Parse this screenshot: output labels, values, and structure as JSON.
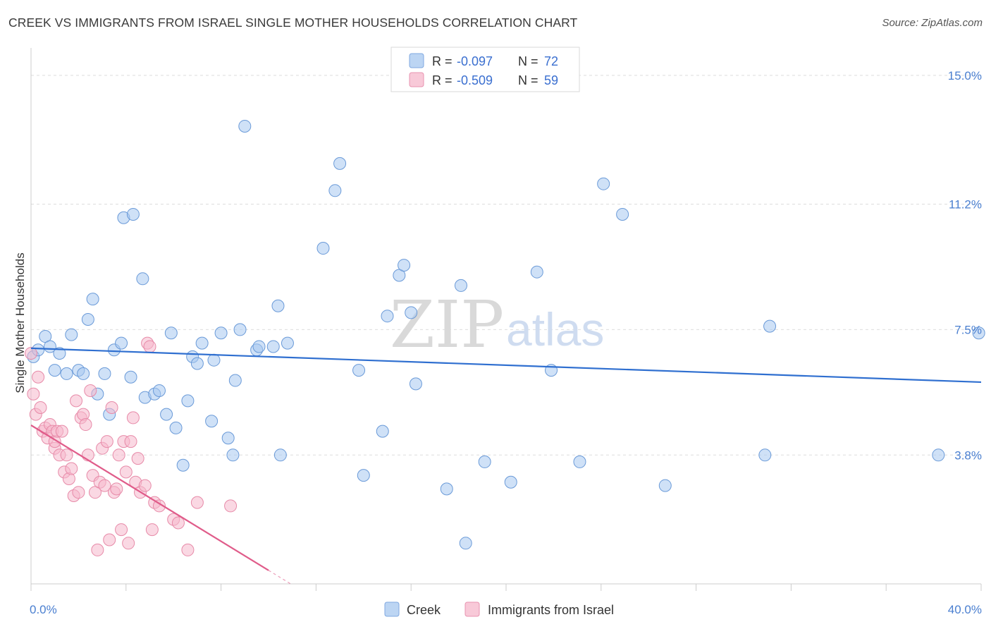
{
  "title": "CREEK VS IMMIGRANTS FROM ISRAEL SINGLE MOTHER HOUSEHOLDS CORRELATION CHART",
  "source": "Source: ZipAtlas.com",
  "watermark": {
    "zip": "ZIP",
    "atlas": "atlas"
  },
  "chart_data": {
    "type": "scatter",
    "ylabel": "Single Mother Households",
    "xlim": [
      0,
      40
    ],
    "ylim": [
      0,
      15.6
    ],
    "x_tick_labels": {
      "0": "0.0%",
      "40": "40.0%"
    },
    "y_ticks": [
      3.8,
      7.5,
      11.2,
      15.0
    ],
    "y_tick_labels": [
      "3.8%",
      "7.5%",
      "11.2%",
      "15.0%"
    ],
    "grid": "horizontal dashed",
    "legend_top": [
      {
        "r_label": "R = ",
        "r_value": "-0.097",
        "n_label": "N = ",
        "n_value": "72",
        "color": "#a8c8f0"
      },
      {
        "r_label": "R = ",
        "r_value": "-0.509",
        "n_label": "N = ",
        "n_value": "59",
        "color": "#f5b8cc"
      }
    ],
    "series": [
      {
        "name": "Creek",
        "color": "#a8c8f0",
        "stroke": "#6a9ad8",
        "trend": {
          "x": [
            0,
            40
          ],
          "y": [
            6.95,
            5.95
          ],
          "color": "#2f6fd0"
        },
        "points": [
          [
            0.1,
            6.7
          ],
          [
            0.3,
            6.9
          ],
          [
            0.6,
            7.3
          ],
          [
            0.8,
            7.0
          ],
          [
            1.0,
            6.3
          ],
          [
            1.2,
            6.8
          ],
          [
            1.5,
            6.2
          ],
          [
            1.7,
            7.35
          ],
          [
            2.0,
            6.3
          ],
          [
            2.2,
            6.2
          ],
          [
            2.4,
            7.8
          ],
          [
            2.6,
            8.4
          ],
          [
            2.8,
            5.6
          ],
          [
            3.1,
            6.2
          ],
          [
            3.3,
            5.0
          ],
          [
            3.5,
            6.9
          ],
          [
            3.8,
            7.1
          ],
          [
            3.9,
            10.8
          ],
          [
            4.2,
            6.1
          ],
          [
            4.3,
            10.9
          ],
          [
            4.7,
            9.0
          ],
          [
            4.8,
            5.5
          ],
          [
            5.2,
            5.6
          ],
          [
            5.4,
            5.7
          ],
          [
            5.7,
            5.0
          ],
          [
            5.9,
            7.4
          ],
          [
            6.1,
            4.6
          ],
          [
            6.4,
            3.5
          ],
          [
            6.6,
            5.4
          ],
          [
            6.8,
            6.7
          ],
          [
            7.0,
            6.5
          ],
          [
            7.2,
            7.1
          ],
          [
            7.6,
            4.8
          ],
          [
            7.7,
            6.6
          ],
          [
            8.0,
            7.4
          ],
          [
            8.3,
            4.3
          ],
          [
            8.5,
            3.8
          ],
          [
            8.6,
            6.0
          ],
          [
            8.8,
            7.5
          ],
          [
            9.0,
            13.5
          ],
          [
            9.5,
            6.9
          ],
          [
            9.6,
            7.0
          ],
          [
            10.2,
            7.0
          ],
          [
            10.4,
            8.2
          ],
          [
            10.5,
            3.8
          ],
          [
            10.8,
            7.1
          ],
          [
            12.3,
            9.9
          ],
          [
            12.8,
            11.6
          ],
          [
            13.0,
            12.4
          ],
          [
            13.8,
            6.3
          ],
          [
            14.0,
            3.2
          ],
          [
            14.8,
            4.5
          ],
          [
            15.0,
            7.9
          ],
          [
            15.5,
            9.1
          ],
          [
            15.7,
            9.4
          ],
          [
            16.0,
            8.0
          ],
          [
            16.2,
            5.9
          ],
          [
            17.5,
            2.8
          ],
          [
            18.1,
            8.8
          ],
          [
            18.3,
            1.2
          ],
          [
            19.1,
            3.6
          ],
          [
            20.2,
            3.0
          ],
          [
            21.3,
            9.2
          ],
          [
            21.9,
            6.3
          ],
          [
            23.1,
            3.6
          ],
          [
            24.1,
            11.8
          ],
          [
            24.9,
            10.9
          ],
          [
            26.7,
            2.9
          ],
          [
            30.9,
            3.8
          ],
          [
            31.1,
            7.6
          ],
          [
            38.2,
            3.8
          ],
          [
            39.9,
            7.4
          ]
        ]
      },
      {
        "name": "Immigrants from Israel",
        "color": "#f5b8cc",
        "stroke": "#e78aa8",
        "trend": {
          "x": [
            0,
            10.0
          ],
          "y": [
            4.68,
            0.4
          ],
          "dash_x": [
            10.0,
            11.0
          ],
          "dash_y": [
            0.4,
            -0.03
          ],
          "color": "#e05c8a"
        },
        "points": [
          [
            0.0,
            6.8
          ],
          [
            0.1,
            5.6
          ],
          [
            0.2,
            5.0
          ],
          [
            0.3,
            6.1
          ],
          [
            0.4,
            5.2
          ],
          [
            0.5,
            4.5
          ],
          [
            0.6,
            4.6
          ],
          [
            0.7,
            4.3
          ],
          [
            0.8,
            4.7
          ],
          [
            0.9,
            4.5
          ],
          [
            1.0,
            4.0
          ],
          [
            1.0,
            4.2
          ],
          [
            1.1,
            4.5
          ],
          [
            1.2,
            3.8
          ],
          [
            1.3,
            4.5
          ],
          [
            1.4,
            3.3
          ],
          [
            1.5,
            3.8
          ],
          [
            1.6,
            3.1
          ],
          [
            1.7,
            3.4
          ],
          [
            1.8,
            2.6
          ],
          [
            1.9,
            5.4
          ],
          [
            2.0,
            2.7
          ],
          [
            2.1,
            4.9
          ],
          [
            2.2,
            5.0
          ],
          [
            2.3,
            4.7
          ],
          [
            2.4,
            3.8
          ],
          [
            2.5,
            5.7
          ],
          [
            2.6,
            3.2
          ],
          [
            2.7,
            2.7
          ],
          [
            2.8,
            1.0
          ],
          [
            2.9,
            3.0
          ],
          [
            3.0,
            4.0
          ],
          [
            3.1,
            2.9
          ],
          [
            3.2,
            4.2
          ],
          [
            3.3,
            1.3
          ],
          [
            3.4,
            5.2
          ],
          [
            3.5,
            2.7
          ],
          [
            3.6,
            2.8
          ],
          [
            3.7,
            3.8
          ],
          [
            3.8,
            1.6
          ],
          [
            3.9,
            4.2
          ],
          [
            4.0,
            3.3
          ],
          [
            4.1,
            1.2
          ],
          [
            4.2,
            4.2
          ],
          [
            4.3,
            4.9
          ],
          [
            4.4,
            3.0
          ],
          [
            4.5,
            3.7
          ],
          [
            4.6,
            2.7
          ],
          [
            4.8,
            2.9
          ],
          [
            4.9,
            7.1
          ],
          [
            5.0,
            7.0
          ],
          [
            5.1,
            1.6
          ],
          [
            5.2,
            2.4
          ],
          [
            5.4,
            2.3
          ],
          [
            6.0,
            1.9
          ],
          [
            6.2,
            1.8
          ],
          [
            6.6,
            1.0
          ],
          [
            7.0,
            2.4
          ],
          [
            8.4,
            2.3
          ]
        ]
      }
    ],
    "legend_bottom": [
      "Creek",
      "Immigrants from Israel"
    ]
  }
}
